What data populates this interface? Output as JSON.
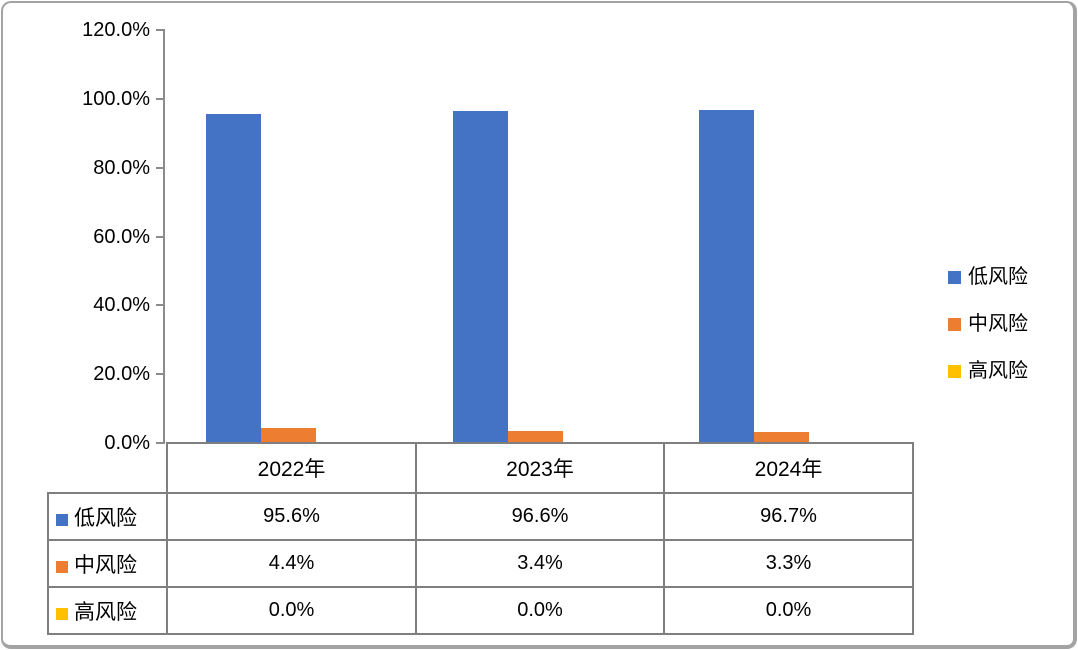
{
  "chart_data": {
    "type": "bar",
    "categories": [
      "2022年",
      "2023年",
      "2024年"
    ],
    "series": [
      {
        "key": "low-risk",
        "name": "低风险",
        "color": "#4472C4",
        "values": [
          95.6,
          96.6,
          96.7
        ]
      },
      {
        "key": "mid-risk",
        "name": "中风险",
        "color": "#ED7D31",
        "values": [
          4.4,
          3.4,
          3.3
        ]
      },
      {
        "key": "high-risk",
        "name": "高风险",
        "color": "#FFC000",
        "values": [
          0.0,
          0.0,
          0.0
        ]
      }
    ],
    "title": "",
    "xlabel": "",
    "ylabel": "",
    "ylim": [
      0,
      120
    ],
    "ytick_step": 20,
    "ytick_labels": [
      "120.0%",
      "100.0%",
      "80.0%",
      "60.0%",
      "40.0%",
      "20.0%",
      "0.0%"
    ],
    "grid": false,
    "legend_position": "right",
    "legend_items": [
      "低风险",
      "中风险",
      "高风险"
    ],
    "data_table": {
      "column_headers": [
        "2022年",
        "2023年",
        "2024年"
      ],
      "row_headers": [
        "低风险",
        "中风险",
        "高风险"
      ],
      "cells": [
        [
          "95.6%",
          "96.6%",
          "96.7%"
        ],
        [
          "4.4%",
          "3.4%",
          "3.3%"
        ],
        [
          "0.0%",
          "0.0%",
          "0.0%"
        ]
      ]
    },
    "colors": {
      "axis": "#8b8b8b",
      "table_border": "#7f7f7f",
      "text": "#000000",
      "frame": "#a3a3a3"
    }
  }
}
